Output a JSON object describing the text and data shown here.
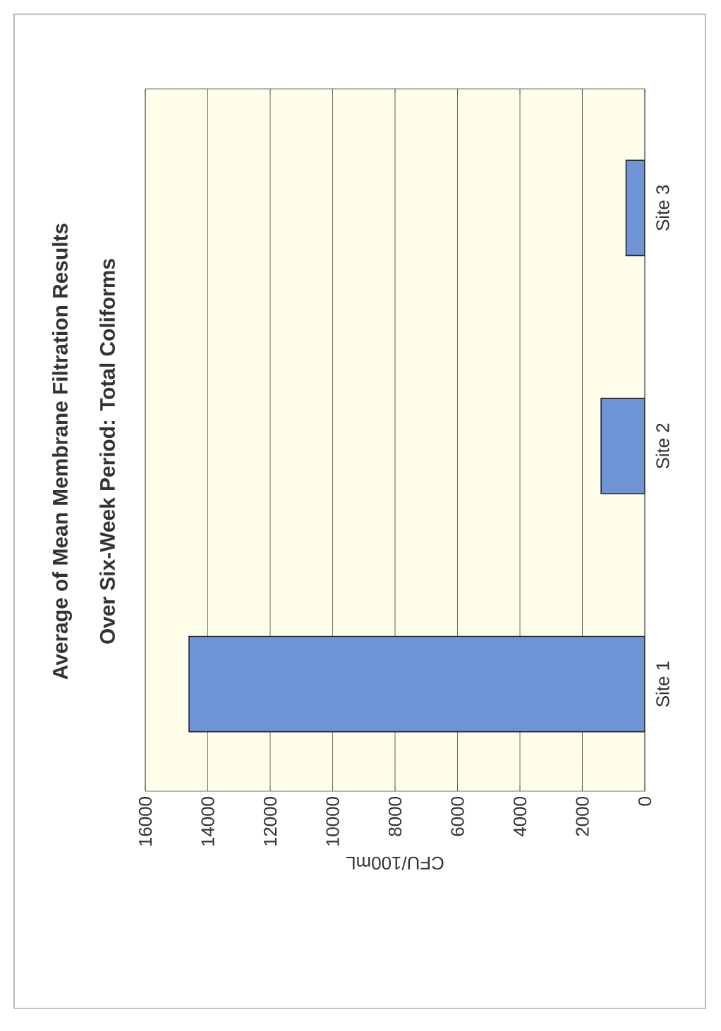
{
  "chart_data": {
    "type": "bar",
    "orientation": "horizontal",
    "title": "Average of Mean Membrane Filtration Results",
    "subtitle": "Over Six-Week  Period: Total Coliforms",
    "xlabel": "CFU/100mL",
    "categories": [
      "Site 3",
      "Site 2",
      "Site 1"
    ],
    "values": [
      600,
      1400,
      14600
    ],
    "color": "#6f94d6",
    "xlim": [
      16000,
      0
    ],
    "xticks": [
      16000,
      14000,
      12000,
      10000,
      8000,
      6000,
      4000,
      2000,
      0
    ],
    "grid": "x"
  }
}
